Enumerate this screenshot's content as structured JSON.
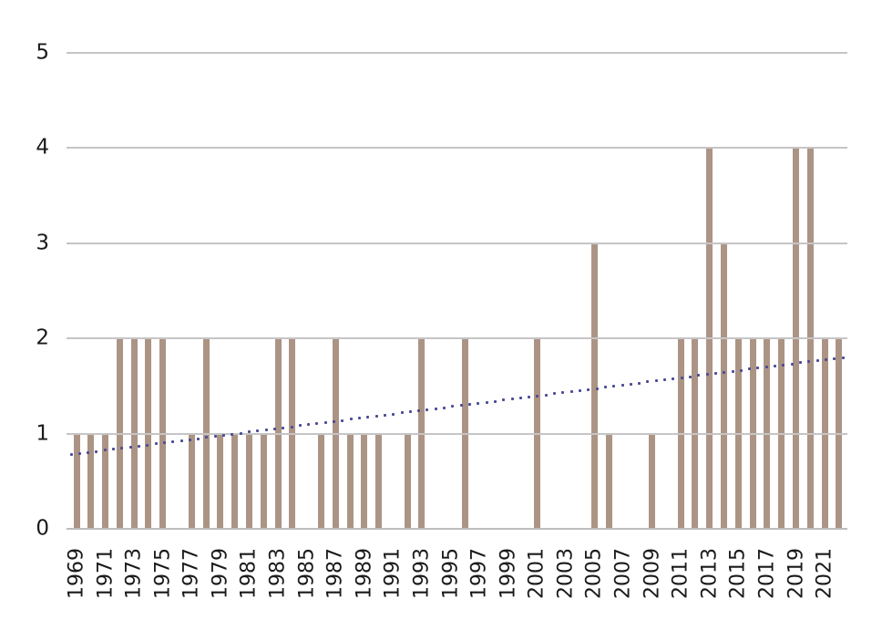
{
  "chart_data": {
    "type": "bar",
    "title": "",
    "xlabel": "",
    "ylabel": "",
    "x": [
      1969,
      1970,
      1971,
      1972,
      1973,
      1974,
      1975,
      1976,
      1977,
      1978,
      1979,
      1980,
      1981,
      1982,
      1983,
      1984,
      1985,
      1986,
      1987,
      1988,
      1989,
      1990,
      1991,
      1992,
      1993,
      1994,
      1995,
      1996,
      1997,
      1998,
      1999,
      2000,
      2001,
      2002,
      2003,
      2004,
      2005,
      2006,
      2007,
      2008,
      2009,
      2010,
      2011,
      2012,
      2013,
      2014,
      2015,
      2016,
      2017,
      2018,
      2019,
      2020,
      2021,
      2022
    ],
    "values": [
      1,
      1,
      1,
      2,
      2,
      2,
      2,
      0,
      1,
      2,
      1,
      1,
      1,
      1,
      2,
      2,
      0,
      1,
      2,
      1,
      1,
      1,
      0,
      1,
      2,
      0,
      0,
      2,
      0,
      0,
      0,
      0,
      2,
      0,
      0,
      0,
      3,
      1,
      0,
      0,
      1,
      0,
      2,
      2,
      4,
      3,
      2,
      2,
      2,
      2,
      4,
      4,
      2,
      2
    ],
    "ylim": [
      0,
      5
    ],
    "yticks": [
      0,
      1,
      2,
      3,
      4,
      5
    ],
    "x_tick_labels": [
      "1969",
      "1971",
      "1973",
      "1975",
      "1977",
      "1979",
      "1981",
      "1983",
      "1985",
      "1987",
      "1989",
      "1991",
      "1993",
      "1995",
      "1997",
      "1999",
      "2001",
      "2003",
      "2005",
      "2007",
      "2009",
      "2011",
      "2013",
      "2015",
      "2017",
      "2019",
      "2021"
    ],
    "x_tick_step": 2,
    "grid": true,
    "legend": false,
    "bar_color": "#AC9485",
    "gridline_color": "#C5C5C5",
    "axis_line_color": "#BDBDBD",
    "text_color": "#1A1A1A",
    "trendline": {
      "style": "dotted",
      "color": "#4C4B95",
      "start_value": 0.78,
      "end_value": 1.8,
      "dot_count": 92
    }
  }
}
